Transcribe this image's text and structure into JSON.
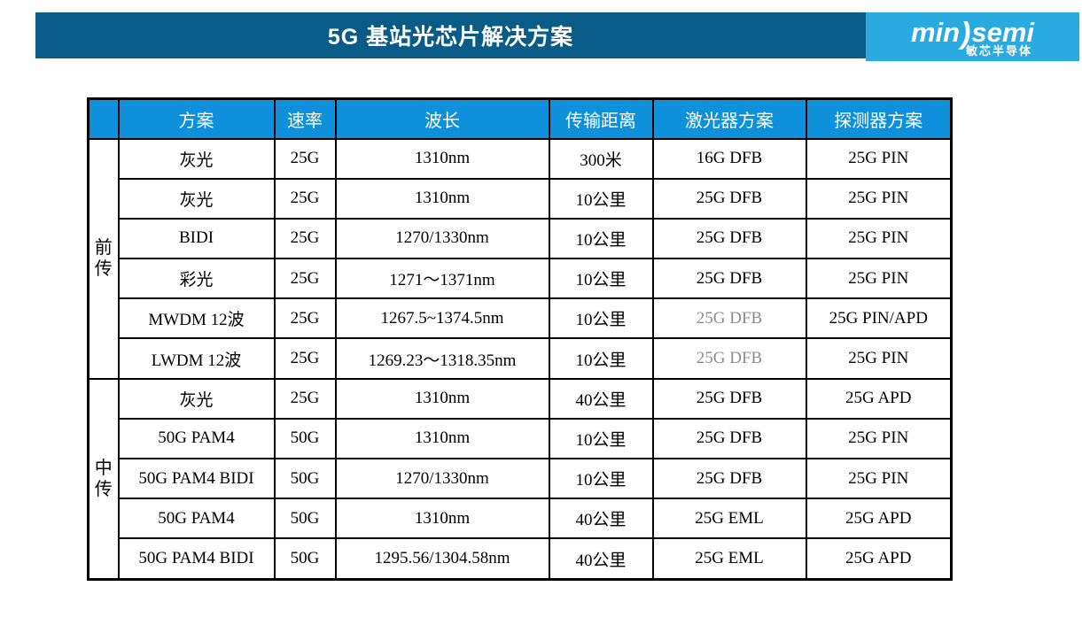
{
  "header": {
    "title": "5G 基站光芯片解决方案"
  },
  "logo": {
    "left": "min",
    "paren": ")",
    "right": "semi",
    "subtitle": "敏芯半导体"
  },
  "colors": {
    "banner_dark_blue": "#0A5C88",
    "logo_light_blue": "#29ABE2",
    "table_header_blue": "#0E90DA",
    "muted_text_gray": "#8C8C8C",
    "text_black": "#000000",
    "text_white": "#ffffff"
  },
  "table": {
    "columns": [
      "",
      "方案",
      "速率",
      "波长",
      "传输距离",
      "激光器方案",
      "探测器方案"
    ],
    "groups": [
      {
        "label": "前传",
        "rows": [
          {
            "solution": "灰光",
            "rate": "25G",
            "wavelength": "1310nm",
            "distance": "300米",
            "laser": "16G DFB",
            "laser_gray": false,
            "detector": "25G PIN"
          },
          {
            "solution": "灰光",
            "rate": "25G",
            "wavelength": "1310nm",
            "distance": "10公里",
            "laser": "25G DFB",
            "laser_gray": false,
            "detector": "25G PIN"
          },
          {
            "solution": "BIDI",
            "rate": "25G",
            "wavelength": "1270/1330nm",
            "distance": "10公里",
            "laser": "25G DFB",
            "laser_gray": false,
            "detector": "25G PIN"
          },
          {
            "solution": "彩光",
            "rate": "25G",
            "wavelength": "1271～1371nm",
            "distance": "10公里",
            "laser": "25G DFB",
            "laser_gray": false,
            "detector": "25G PIN"
          },
          {
            "solution": "MWDM 12波",
            "rate": "25G",
            "wavelength": "1267.5~1374.5nm",
            "distance": "10公里",
            "laser": "25G DFB",
            "laser_gray": true,
            "detector": "25G PIN/APD"
          },
          {
            "solution": "LWDM 12波",
            "rate": "25G",
            "wavelength": "1269.23～1318.35nm",
            "distance": "10公里",
            "laser": "25G DFB",
            "laser_gray": true,
            "detector": "25G PIN"
          }
        ]
      },
      {
        "label": "中传",
        "rows": [
          {
            "solution": "灰光",
            "rate": "25G",
            "wavelength": "1310nm",
            "distance": "40公里",
            "laser": "25G DFB",
            "laser_gray": false,
            "detector": "25G APD"
          },
          {
            "solution": "50G PAM4",
            "rate": "50G",
            "wavelength": "1310nm",
            "distance": "10公里",
            "laser": "25G DFB",
            "laser_gray": false,
            "detector": "25G PIN"
          },
          {
            "solution": "50G PAM4 BIDI",
            "rate": "50G",
            "wavelength": "1270/1330nm",
            "distance": "10公里",
            "laser": "25G DFB",
            "laser_gray": false,
            "detector": "25G PIN"
          },
          {
            "solution": "50G PAM4",
            "rate": "50G",
            "wavelength": "1310nm",
            "distance": "40公里",
            "laser": "25G EML",
            "laser_gray": false,
            "detector": "25G APD"
          },
          {
            "solution": "50G PAM4 BIDI",
            "rate": "50G",
            "wavelength": "1295.56/1304.58nm",
            "distance": "40公里",
            "laser": "25G EML",
            "laser_gray": false,
            "detector": "25G APD"
          }
        ]
      }
    ]
  }
}
